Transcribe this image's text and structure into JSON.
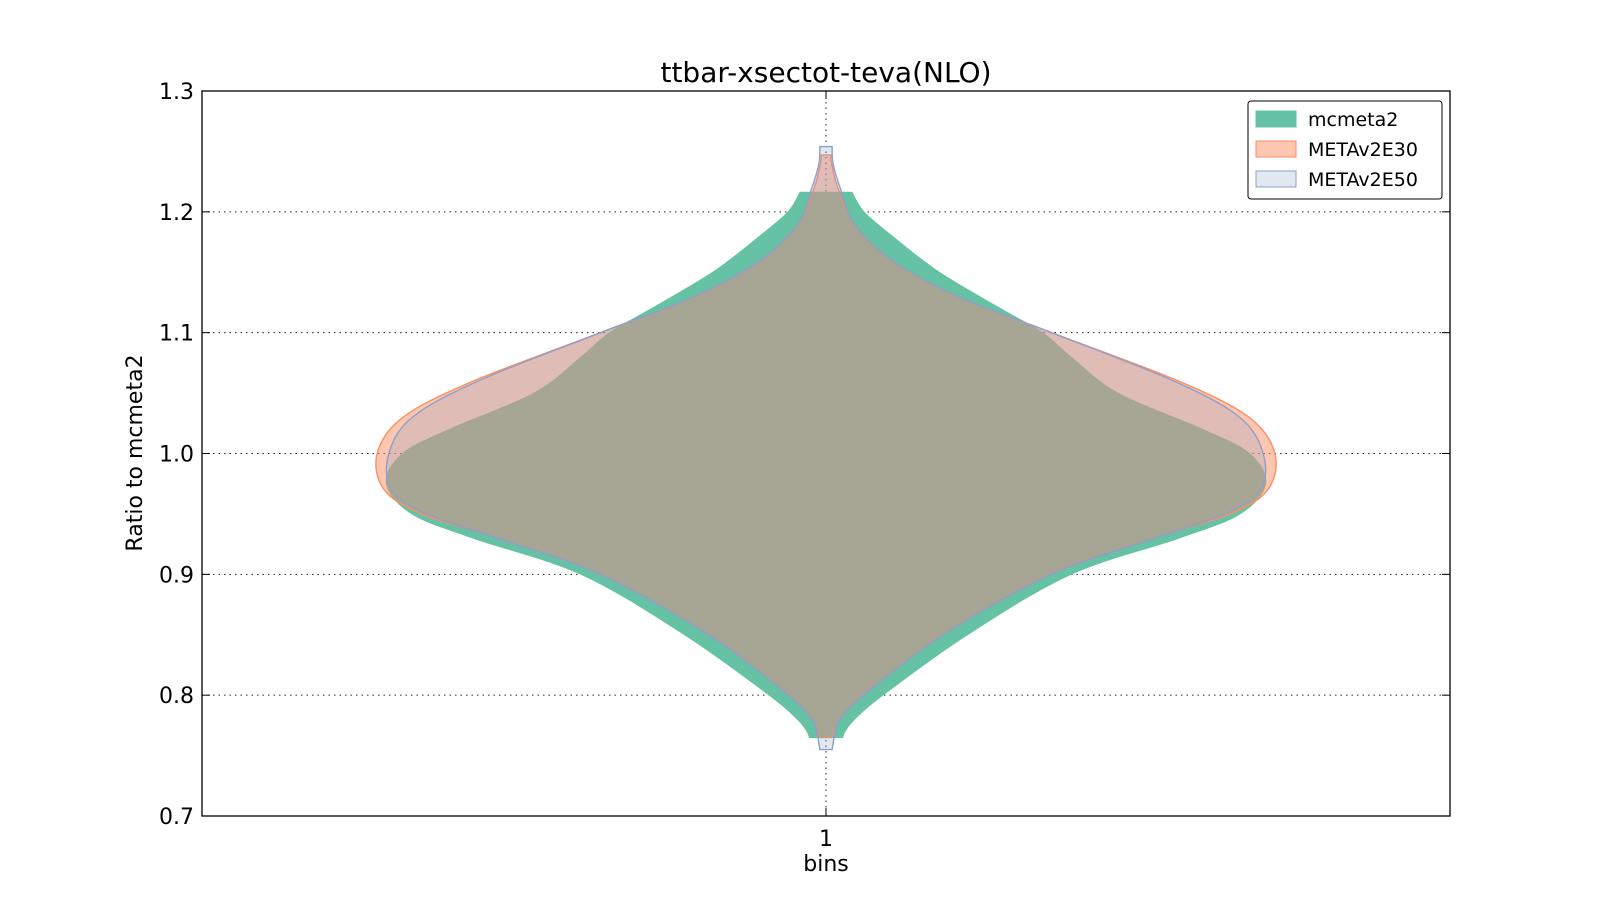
{
  "chart_data": {
    "type": "violin",
    "title": "ttbar-xsectot-teva(NLO)",
    "xlabel": "bins",
    "ylabel": "Ratio to mcmeta2",
    "categories": [
      "1"
    ],
    "ylim": [
      0.7,
      1.3
    ],
    "yticks": [
      "0.7",
      "0.8",
      "0.9",
      "1.0",
      "1.1",
      "1.2",
      "1.3"
    ],
    "grid": true,
    "legend_position": "top-right",
    "series": [
      {
        "name": "mcmeta2",
        "fill": "#66c2a5",
        "stroke": "#66c2a5",
        "fill_opacity": 1.0,
        "y_range": [
          0.765,
          1.216
        ],
        "profile": [
          [
            0.765,
            0.035
          ],
          [
            0.77,
            0.04
          ],
          [
            0.78,
            0.06
          ],
          [
            0.8,
            0.12
          ],
          [
            0.85,
            0.3
          ],
          [
            0.9,
            0.52
          ],
          [
            0.93,
            0.75
          ],
          [
            0.95,
            0.88
          ],
          [
            0.975,
            0.935
          ],
          [
            1.0,
            0.9
          ],
          [
            1.02,
            0.8
          ],
          [
            1.05,
            0.62
          ],
          [
            1.08,
            0.52
          ],
          [
            1.1,
            0.46
          ],
          [
            1.12,
            0.37
          ],
          [
            1.15,
            0.24
          ],
          [
            1.18,
            0.14
          ],
          [
            1.2,
            0.08
          ],
          [
            1.216,
            0.055
          ]
        ]
      },
      {
        "name": "METAv2E30",
        "fill": "#fc8d62",
        "stroke": "#fc8d62",
        "fill_opacity": 0.5,
        "y_range": [
          0.765,
          1.247
        ],
        "profile": [
          [
            0.765,
            0.012
          ],
          [
            0.77,
            0.018
          ],
          [
            0.78,
            0.03
          ],
          [
            0.8,
            0.08
          ],
          [
            0.85,
            0.25
          ],
          [
            0.9,
            0.48
          ],
          [
            0.93,
            0.7
          ],
          [
            0.95,
            0.86
          ],
          [
            0.97,
            0.94
          ],
          [
            1.0,
            0.955
          ],
          [
            1.03,
            0.9
          ],
          [
            1.06,
            0.75
          ],
          [
            1.1,
            0.48
          ],
          [
            1.13,
            0.28
          ],
          [
            1.16,
            0.14
          ],
          [
            1.19,
            0.06
          ],
          [
            1.22,
            0.025
          ],
          [
            1.24,
            0.012
          ],
          [
            1.247,
            0.01
          ]
        ]
      },
      {
        "name": "METAv2E50",
        "fill": "#8da0cb",
        "stroke": "#8da0cb",
        "fill_opacity": 0.25,
        "y_range": [
          0.755,
          1.254
        ],
        "profile": [
          [
            0.755,
            0.013
          ],
          [
            0.77,
            0.02
          ],
          [
            0.78,
            0.03
          ],
          [
            0.8,
            0.08
          ],
          [
            0.85,
            0.25
          ],
          [
            0.9,
            0.48
          ],
          [
            0.93,
            0.7
          ],
          [
            0.95,
            0.85
          ],
          [
            0.97,
            0.925
          ],
          [
            1.0,
            0.93
          ],
          [
            1.03,
            0.88
          ],
          [
            1.06,
            0.74
          ],
          [
            1.1,
            0.48
          ],
          [
            1.13,
            0.28
          ],
          [
            1.16,
            0.14
          ],
          [
            1.19,
            0.06
          ],
          [
            1.22,
            0.03
          ],
          [
            1.24,
            0.015
          ],
          [
            1.254,
            0.013
          ]
        ]
      }
    ]
  }
}
